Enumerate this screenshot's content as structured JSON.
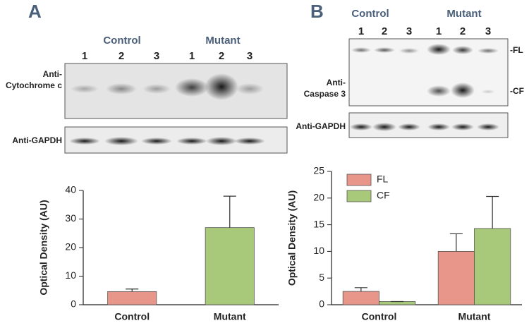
{
  "panels": [
    {
      "letter": "A",
      "groups": [
        "Control",
        "Mutant"
      ],
      "lanes": [
        "1",
        "2",
        "3",
        "1",
        "2",
        "3"
      ],
      "blot_labels": [
        [
          "Anti-",
          "Cytochrome c"
        ],
        [
          "Anti-GAPDH"
        ]
      ]
    },
    {
      "letter": "B",
      "groups": [
        "Control",
        "Mutant"
      ],
      "lanes": [
        "1",
        "2",
        "3",
        "1",
        "2",
        "3"
      ],
      "blot_labels": [
        [
          "Anti-",
          "Caspase 3"
        ],
        [
          "Anti-GAPDH"
        ]
      ],
      "band_labels": [
        "-FL",
        "-CF"
      ]
    }
  ],
  "chart_data": [
    {
      "type": "bar",
      "ylabel": "Optical Density (AU)",
      "categories": [
        "Control",
        "Mutant"
      ],
      "values": [
        4.6,
        27
      ],
      "errors": [
        0.9,
        11
      ],
      "colors": [
        "#e8968a",
        "#a9c97a"
      ],
      "ylim": [
        0,
        40
      ],
      "yticks": [
        0,
        10,
        20,
        30,
        40
      ]
    },
    {
      "type": "bar",
      "ylabel": "Optical Density (AU)",
      "categories": [
        "Control",
        "Mutant"
      ],
      "series": [
        {
          "name": "FL",
          "color": "#e8968a",
          "values": [
            2.5,
            10.0
          ],
          "errors": [
            0.7,
            3.3
          ]
        },
        {
          "name": "CF",
          "color": "#a9c97a",
          "values": [
            0.6,
            14.3
          ],
          "errors": [
            0,
            6
          ]
        }
      ],
      "ylim": [
        0,
        25
      ],
      "yticks": [
        0,
        5,
        10,
        15,
        20,
        25
      ],
      "legend": "top-left"
    }
  ]
}
